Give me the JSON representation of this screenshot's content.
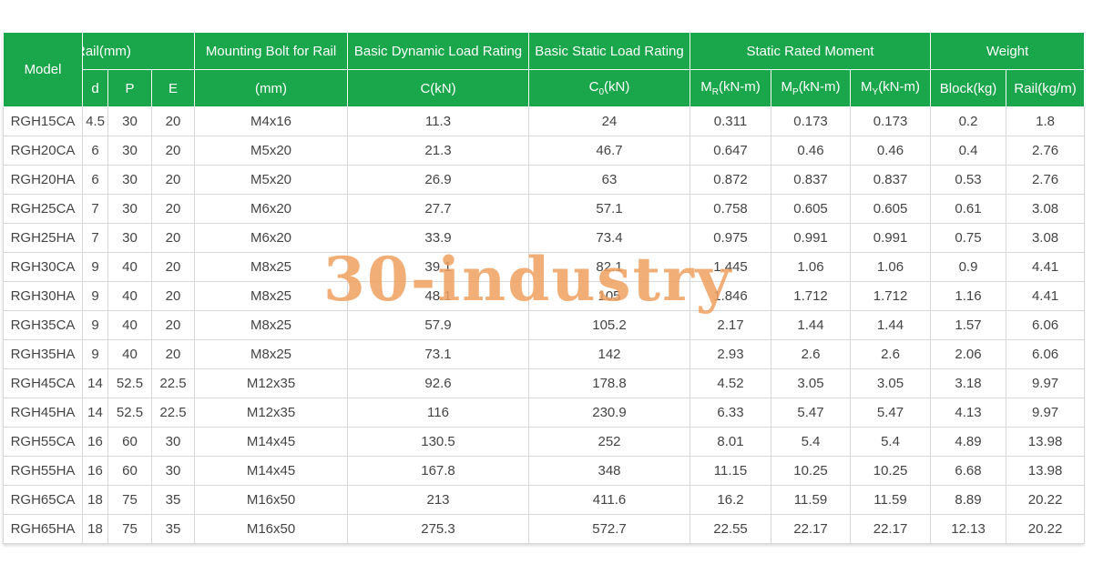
{
  "header": {
    "top": [
      "Model",
      "Rail(mm)",
      "Mounting Bolt for Rail",
      "Basic Dynamic Load Rating",
      "Basic Static Load Rating",
      "Static Rated Moment",
      "Weight"
    ],
    "sub": [
      "d",
      "P",
      "E",
      "(mm)",
      "C(kN)",
      {
        "base": "C",
        "sub": "0",
        "unit": "(kN)"
      },
      {
        "base": "M",
        "sub": "R",
        "unit": "(kN-m)"
      },
      {
        "base": "M",
        "sub": "P",
        "unit": "(kN-m)"
      },
      {
        "base": "M",
        "sub": "Y",
        "unit": "(kN-m)"
      },
      "Block(kg)",
      "Rail(kg/m)"
    ]
  },
  "table": {
    "rows": [
      [
        "RGH15CA",
        "4.5",
        "30",
        "20",
        "M4x16",
        "11.3",
        "24",
        "0.311",
        "0.173",
        "0.173",
        "0.2",
        "1.8"
      ],
      [
        "RGH20CA",
        "6",
        "30",
        "20",
        "M5x20",
        "21.3",
        "46.7",
        "0.647",
        "0.46",
        "0.46",
        "0.4",
        "2.76"
      ],
      [
        "RGH20HA",
        "6",
        "30",
        "20",
        "M5x20",
        "26.9",
        "63",
        "0.872",
        "0.837",
        "0.837",
        "0.53",
        "2.76"
      ],
      [
        "RGH25CA",
        "7",
        "30",
        "20",
        "M6x20",
        "27.7",
        "57.1",
        "0.758",
        "0.605",
        "0.605",
        "0.61",
        "3.08"
      ],
      [
        "RGH25HA",
        "7",
        "30",
        "20",
        "M6x20",
        "33.9",
        "73.4",
        "0.975",
        "0.991",
        "0.991",
        "0.75",
        "3.08"
      ],
      [
        "RGH30CA",
        "9",
        "40",
        "20",
        "M8x25",
        "39.1",
        "82.1",
        "1.445",
        "1.06",
        "1.06",
        "0.9",
        "4.41"
      ],
      [
        "RGH30HA",
        "9",
        "40",
        "20",
        "M8x25",
        "48.1",
        "105",
        "1.846",
        "1.712",
        "1.712",
        "1.16",
        "4.41"
      ],
      [
        "RGH35CA",
        "9",
        "40",
        "20",
        "M8x25",
        "57.9",
        "105.2",
        "2.17",
        "1.44",
        "1.44",
        "1.57",
        "6.06"
      ],
      [
        "RGH35HA",
        "9",
        "40",
        "20",
        "M8x25",
        "73.1",
        "142",
        "2.93",
        "2.6",
        "2.6",
        "2.06",
        "6.06"
      ],
      [
        "RGH45CA",
        "14",
        "52.5",
        "22.5",
        "M12x35",
        "92.6",
        "178.8",
        "4.52",
        "3.05",
        "3.05",
        "3.18",
        "9.97"
      ],
      [
        "RGH45HA",
        "14",
        "52.5",
        "22.5",
        "M12x35",
        "116",
        "230.9",
        "6.33",
        "5.47",
        "5.47",
        "4.13",
        "9.97"
      ],
      [
        "RGH55CA",
        "16",
        "60",
        "30",
        "M14x45",
        "130.5",
        "252",
        "8.01",
        "5.4",
        "5.4",
        "4.89",
        "13.98"
      ],
      [
        "RGH55HA",
        "16",
        "60",
        "30",
        "M14x45",
        "167.8",
        "348",
        "11.15",
        "10.25",
        "10.25",
        "6.68",
        "13.98"
      ],
      [
        "RGH65CA",
        "18",
        "75",
        "35",
        "M16x50",
        "213",
        "411.6",
        "16.2",
        "11.59",
        "11.59",
        "8.89",
        "20.22"
      ],
      [
        "RGH65HA",
        "18",
        "75",
        "35",
        "M16x50",
        "275.3",
        "572.7",
        "22.55",
        "22.17",
        "22.17",
        "12.13",
        "20.22"
      ]
    ]
  },
  "watermark": "30-industry"
}
